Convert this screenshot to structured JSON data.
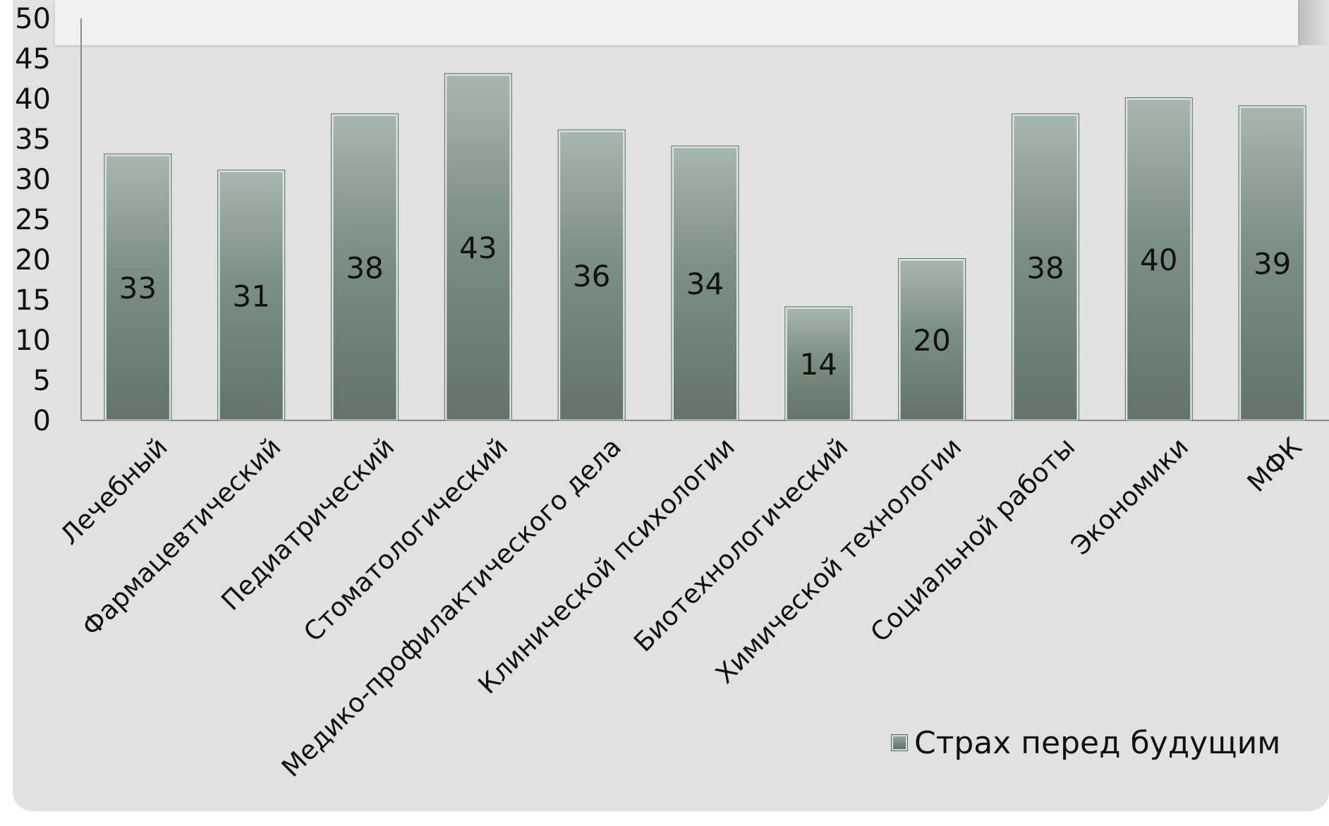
{
  "chart_data": {
    "type": "bar",
    "title": "",
    "xlabel": "",
    "ylabel": "",
    "categories": [
      "Лечебный",
      "Фармацевтический",
      "Педиатрический",
      "Стоматологический",
      "Медико-профилактического дела",
      "Клинической психологии",
      "Биотехнологический",
      "Химической технологии",
      "Социальной работы",
      "Экономики",
      "МФК"
    ],
    "series": [
      {
        "name": "Страх перед будущим",
        "values": [
          33,
          31,
          38,
          43,
          36,
          34,
          14,
          20,
          38,
          40,
          39
        ],
        "color": "#6f8377"
      }
    ],
    "ylim": [
      0,
      50
    ],
    "yticks": [
      0,
      5,
      10,
      15,
      20,
      25,
      30,
      35,
      40,
      45,
      50
    ],
    "grid": false,
    "data_labels": true,
    "legend_position": "bottom-right"
  }
}
